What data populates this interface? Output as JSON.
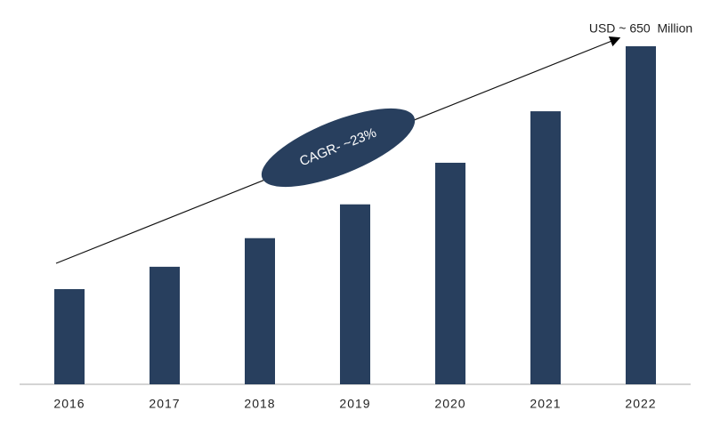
{
  "chart_data": {
    "type": "bar",
    "categories": [
      "2016",
      "2017",
      "2018",
      "2019",
      "2020",
      "2021",
      "2022"
    ],
    "values": [
      183,
      226,
      281,
      346,
      426,
      525,
      650
    ],
    "color": "#283f5e",
    "annotations": [
      "USD ~ 650  Million",
      "CAGR- ~23%"
    ]
  }
}
